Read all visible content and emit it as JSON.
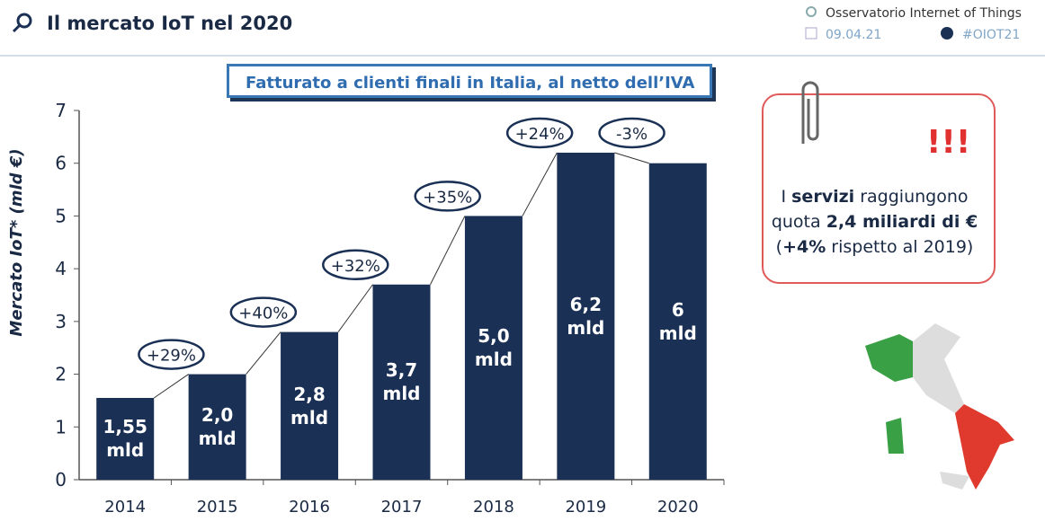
{
  "header": {
    "title": "Il mercato IoT nel 2020",
    "organization": "Osservatorio Internet of Things",
    "date": "09.04.21",
    "hashtag": "#OIOT21"
  },
  "chart_data": {
    "type": "bar",
    "subtitle": "Fatturato a clienti finali in Italia, al netto dell’IVA",
    "y_label": "Mercato IoT* (mld €)",
    "categories": [
      "2014",
      "2015",
      "2016",
      "2017",
      "2018",
      "2019",
      "2020"
    ],
    "values": [
      1.55,
      2.0,
      2.8,
      3.7,
      5.0,
      6.2,
      6
    ],
    "value_labels": [
      "1,55 mld",
      "2,0 mld",
      "2,8 mld",
      "3,7 mld",
      "5,0 mld",
      "6,2 mld",
      "6 mld"
    ],
    "color": "#1a3055",
    "ylim": [
      0,
      7
    ],
    "yticks": [
      0,
      1,
      2,
      3,
      4,
      5,
      6,
      7
    ],
    "annotations": [
      "+29%",
      "+40%",
      "+32%",
      "+35%",
      "+24%",
      "-3%"
    ]
  },
  "note": [
    "I ",
    "servizi",
    " raggiungono quota ",
    "2,4 miliardi di €",
    " (",
    "+4%",
    " rispetto al 2019)"
  ]
}
